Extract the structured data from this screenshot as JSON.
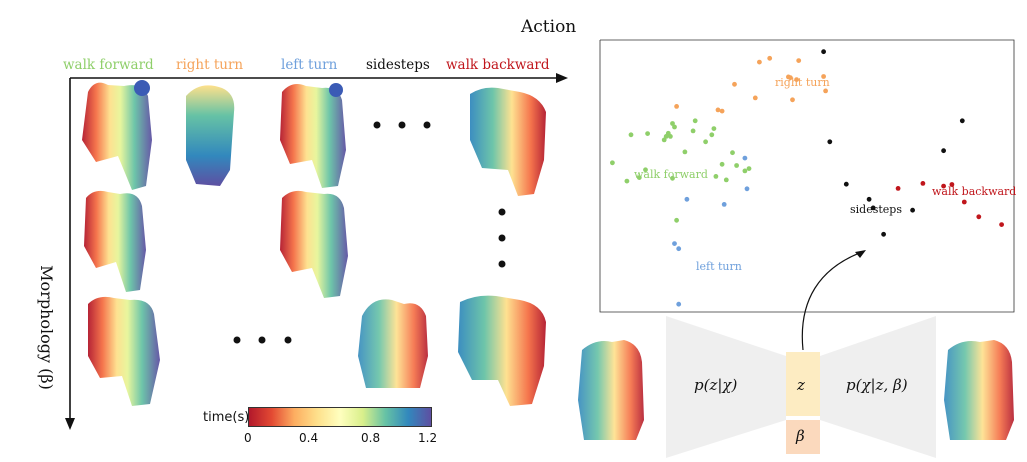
{
  "axes": {
    "x_title": "Action",
    "y_title": "Morphology (β)"
  },
  "actions": [
    {
      "label": "walk forward",
      "color": "#8fcf6a"
    },
    {
      "label": "right turn",
      "color": "#f5a35a"
    },
    {
      "label": "left turn",
      "color": "#6fa0dc"
    },
    {
      "label": "sidesteps",
      "color": "#111111"
    },
    {
      "label": "walk backward",
      "color": "#c0161c"
    }
  ],
  "colorbar": {
    "title": "time(s)",
    "ticks": [
      "0",
      "0.4",
      "0.8",
      "1.2"
    ],
    "colormap": [
      "#b2182b",
      "#e34a33",
      "#fdae61",
      "#fee08b",
      "#ffffbf",
      "#d9ef8b",
      "#66c2a5",
      "#3288bd",
      "#5e4fa2"
    ]
  },
  "chart_data": {
    "type": "scatter",
    "series": [
      {
        "name": "walk forward",
        "color": "#8fcf6a",
        "points": [
          [
            0.6,
            0.04
          ],
          [
            1.3,
            -0.43
          ],
          [
            1.5,
            0.76
          ],
          [
            1.9,
            -0.34
          ],
          [
            2.2,
            -0.14
          ],
          [
            2.3,
            0.79
          ],
          [
            3.3,
            0.8
          ],
          [
            3.4,
            0.72
          ],
          [
            3.5,
            1.05
          ],
          [
            3.6,
            0.96
          ],
          [
            3.1,
            0.63
          ],
          [
            3.2,
            0.72
          ],
          [
            3.5,
            -0.36
          ],
          [
            3.7,
            -1.44
          ],
          [
            4.1,
            0.32
          ],
          [
            4.5,
            0.86
          ],
          [
            4.6,
            1.12
          ],
          [
            5.1,
            0.58
          ],
          [
            5.5,
            0.92
          ],
          [
            5.4,
            0.76
          ],
          [
            5.6,
            -0.31
          ],
          [
            5.9,
            0.0
          ],
          [
            6.1,
            -0.4
          ],
          [
            6.4,
            0.3
          ],
          [
            6.6,
            -0.03
          ],
          [
            7.0,
            -0.17
          ],
          [
            7.2,
            -0.11
          ]
        ]
      },
      {
        "name": "right turn",
        "color": "#f5a35a",
        "points": [
          [
            3.7,
            1.49
          ],
          [
            5.7,
            1.4
          ],
          [
            5.9,
            1.37
          ],
          [
            6.5,
            2.06
          ],
          [
            7.5,
            1.71
          ],
          [
            7.7,
            2.63
          ],
          [
            8.2,
            2.73
          ],
          [
            9.1,
            2.25
          ],
          [
            9.2,
            2.23
          ],
          [
            9.3,
            1.66
          ],
          [
            9.5,
            2.18
          ],
          [
            9.6,
            2.67
          ],
          [
            10.8,
            2.26
          ],
          [
            10.9,
            1.89
          ]
        ]
      },
      {
        "name": "left turn",
        "color": "#6fa0dc",
        "points": [
          [
            3.6,
            -2.04
          ],
          [
            3.8,
            -2.17
          ],
          [
            3.8,
            -3.6
          ],
          [
            4.2,
            -0.9
          ],
          [
            6.0,
            -1.03
          ],
          [
            7.0,
            0.16
          ],
          [
            7.1,
            -0.63
          ]
        ]
      },
      {
        "name": "sidesteps",
        "color": "#111111",
        "points": [
          [
            10.8,
            2.9
          ],
          [
            11.1,
            0.58
          ],
          [
            11.9,
            -0.51
          ],
          [
            13.0,
            -0.9
          ],
          [
            13.2,
            -1.12
          ],
          [
            13.7,
            -1.8
          ],
          [
            15.1,
            -1.18
          ],
          [
            16.6,
            0.35
          ],
          [
            17.5,
            1.12
          ]
        ]
      },
      {
        "name": "walk backward",
        "color": "#c0161c",
        "points": [
          [
            14.4,
            -0.62
          ],
          [
            15.6,
            -0.49
          ],
          [
            16.6,
            -0.56
          ],
          [
            17.0,
            -0.52
          ],
          [
            17.6,
            -0.97
          ],
          [
            18.3,
            -1.35
          ],
          [
            19.4,
            -1.55
          ]
        ]
      }
    ],
    "xlim": [
      0,
      20
    ],
    "ylim": [
      -3.8,
      3.2
    ],
    "annotations": [
      {
        "text": "walk forward",
        "series": "walk forward"
      },
      {
        "text": "right turn",
        "series": "right turn"
      },
      {
        "text": "left turn",
        "series": "left turn"
      },
      {
        "text": "sidesteps",
        "series": "sidesteps"
      },
      {
        "text": "walk backward",
        "series": "walk backward"
      }
    ]
  },
  "model": {
    "encoder": "p(z|χ)",
    "decoder": "p(χ|z, β)",
    "latent": "z",
    "morphology": "β"
  },
  "ellipsis_glyph": "• • •"
}
